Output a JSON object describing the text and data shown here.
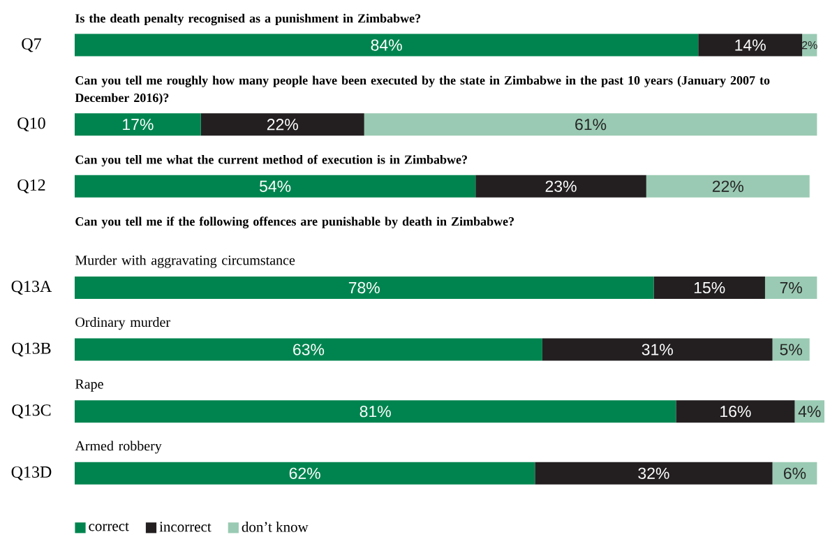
{
  "chart_data": [
    {
      "type": "bar",
      "orientation": "horizontal",
      "stacked": true,
      "tick_labels": "y",
      "title": "Is the death penalty recognised as a punishment in Zimbabwe?",
      "categories": [
        "Q7"
      ],
      "series": [
        {
          "color": "#00844f",
          "values": [
            84
          ],
          "value_labels": [
            "84%"
          ]
        },
        {
          "color": "#231f20",
          "values": [
            14
          ],
          "value_labels": [
            "14%"
          ]
        },
        {
          "color": "#9acab3",
          "values": [
            2
          ],
          "value_labels": [
            "2%"
          ]
        }
      ]
    },
    {
      "type": "bar",
      "orientation": "horizontal",
      "stacked": true,
      "tick_labels": "y",
      "title": "Can you tell me roughly how many people have been executed by the state in Zimbabwe in the past 10 years (January 2007 to December 2016)?",
      "categories": [
        "Q10"
      ],
      "series": [
        {
          "color": "#00844f",
          "values": [
            17
          ],
          "value_labels": [
            "17%"
          ]
        },
        {
          "color": "#231f20",
          "values": [
            22
          ],
          "value_labels": [
            "22%"
          ]
        },
        {
          "color": "#9acab3",
          "values": [
            61
          ],
          "value_labels": [
            "61%"
          ]
        }
      ]
    },
    {
      "type": "bar",
      "orientation": "horizontal",
      "stacked": true,
      "tick_labels": "y",
      "title": "Can you tell me what the current method of execution is in Zimbabwe?",
      "categories": [
        "Q12"
      ],
      "series": [
        {
          "color": "#00844f",
          "values": [
            54
          ],
          "value_labels": [
            "54%"
          ]
        },
        {
          "color": "#231f20",
          "values": [
            23
          ],
          "value_labels": [
            "23%"
          ]
        },
        {
          "color": "#9acab3",
          "values": [
            22
          ],
          "value_labels": [
            "22%"
          ]
        }
      ]
    },
    {
      "type": "bar",
      "orientation": "horizontal",
      "stacked": true,
      "tick_labels": "y",
      "title": "Can you tell me if the following offences are punishable by death in Zimbabwe?",
      "subtitle": "Murder with aggravating circumstance",
      "categories": [
        "Q13A"
      ],
      "series": [
        {
          "color": "#00844f",
          "values": [
            78
          ],
          "value_labels": [
            "78%"
          ]
        },
        {
          "color": "#231f20",
          "values": [
            15
          ],
          "value_labels": [
            "15%"
          ]
        },
        {
          "color": "#9acab3",
          "values": [
            7
          ],
          "value_labels": [
            "7%"
          ]
        }
      ]
    },
    {
      "type": "bar",
      "orientation": "horizontal",
      "stacked": true,
      "tick_labels": "y",
      "subtitle": "Ordinary murder",
      "categories": [
        "Q13B"
      ],
      "series": [
        {
          "color": "#00844f",
          "values": [
            63
          ],
          "value_labels": [
            "63%"
          ]
        },
        {
          "color": "#231f20",
          "values": [
            31
          ],
          "value_labels": [
            "31%"
          ]
        },
        {
          "color": "#9acab3",
          "values": [
            5
          ],
          "value_labels": [
            "5%"
          ]
        }
      ]
    },
    {
      "type": "bar",
      "orientation": "horizontal",
      "stacked": true,
      "tick_labels": "y",
      "subtitle": "Rape",
      "categories": [
        "Q13C"
      ],
      "series": [
        {
          "color": "#00844f",
          "values": [
            81
          ],
          "value_labels": [
            "81%"
          ]
        },
        {
          "color": "#231f20",
          "values": [
            16
          ],
          "value_labels": [
            "16%"
          ]
        },
        {
          "color": "#9acab3",
          "values": [
            4
          ],
          "value_labels": [
            "4%"
          ]
        }
      ]
    },
    {
      "type": "bar",
      "orientation": "horizontal",
      "stacked": true,
      "tick_labels": "y",
      "subtitle": "Armed robbery",
      "categories": [
        "Q13D"
      ],
      "legend": "bottom left",
      "series": [
        {
          "name": "correct",
          "color": "#00844f",
          "values": [
            62
          ],
          "value_labels": [
            "62%"
          ]
        },
        {
          "name": "incorrect",
          "color": "#231f20",
          "values": [
            32
          ],
          "value_labels": [
            "32%"
          ]
        },
        {
          "name": "don’t know",
          "color": "#9acab3",
          "values": [
            6
          ],
          "value_labels": [
            "6%"
          ]
        }
      ]
    }
  ]
}
